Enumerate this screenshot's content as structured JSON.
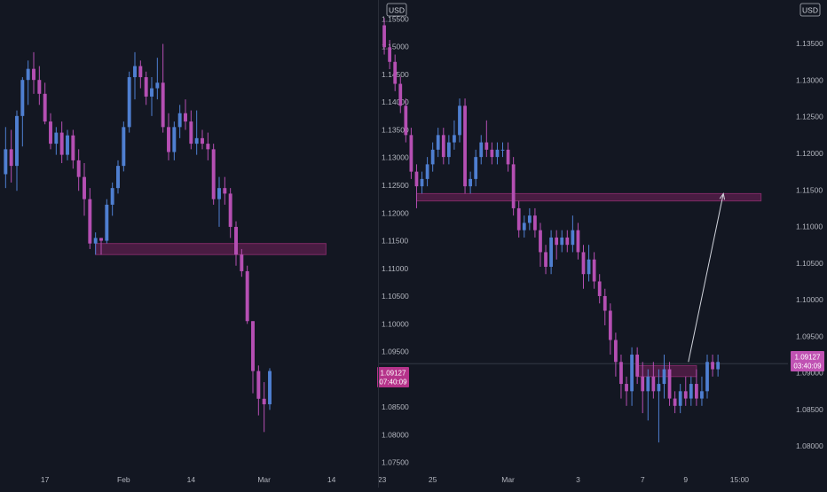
{
  "colors": {
    "background": "#131722",
    "text": "#b2b5be",
    "divider": "#2a2e39",
    "bull": "#4f7fd1",
    "bear": "#b54fb3",
    "zone_fill": "#5c1f4d",
    "zone_stroke": "#7e2a66",
    "price_tag": "#b5338a",
    "price_tag_right": "#c052b3",
    "arrow": "#d1d4dc"
  },
  "chart_data": [
    {
      "type": "candlestick",
      "title": "",
      "currency_label": "USD",
      "current_price": "1.09127",
      "countdown": "07:40:09",
      "x_tick_labels": [
        "17",
        "Feb",
        "14",
        "Mar",
        "14",
        "23"
      ],
      "y_tick_labels": [
        "1.15500",
        "1.15000",
        "1.14500",
        "1.14000",
        "1.13500",
        "1.13000",
        "1.12500",
        "1.12000",
        "1.11500",
        "1.11000",
        "1.10500",
        "1.10000",
        "1.09500",
        "1.09000",
        "1.08500",
        "1.08000",
        "1.07500"
      ],
      "ylim": [
        1.074,
        1.1565
      ],
      "xlim": [
        0,
        66
      ],
      "y_axis_side": "right",
      "x_ticks": [
        8,
        22,
        34,
        47,
        59,
        68
      ],
      "zone": {
        "x0": 17,
        "x1": 58,
        "y_low": 1.1125,
        "y_high": 1.1145
      },
      "candles": [
        [
          1,
          1.127,
          1.1355,
          1.1245,
          1.1315
        ],
        [
          2,
          1.1315,
          1.135,
          1.1255,
          1.1285
        ],
        [
          3,
          1.1285,
          1.1385,
          1.124,
          1.1375
        ],
        [
          4,
          1.1375,
          1.1445,
          1.132,
          1.144
        ],
        [
          5,
          1.144,
          1.1475,
          1.1395,
          1.146
        ],
        [
          6,
          1.146,
          1.149,
          1.1415,
          1.144
        ],
        [
          7,
          1.144,
          1.1465,
          1.1395,
          1.1415
        ],
        [
          8,
          1.1415,
          1.1435,
          1.136,
          1.1365
        ],
        [
          9,
          1.1365,
          1.138,
          1.1315,
          1.1325
        ],
        [
          10,
          1.1325,
          1.1355,
          1.1305,
          1.1345
        ],
        [
          11,
          1.1345,
          1.1365,
          1.129,
          1.1305
        ],
        [
          12,
          1.1305,
          1.135,
          1.1295,
          1.134
        ],
        [
          13,
          1.134,
          1.135,
          1.128,
          1.1295
        ],
        [
          14,
          1.1295,
          1.1315,
          1.124,
          1.1265
        ],
        [
          15,
          1.1265,
          1.129,
          1.1195,
          1.1225
        ],
        [
          16,
          1.1225,
          1.1245,
          1.1135,
          1.1145
        ],
        [
          17,
          1.1145,
          1.1165,
          1.1125,
          1.1155
        ],
        [
          18,
          1.1155,
          1.1155,
          1.1125,
          1.115
        ],
        [
          19,
          1.115,
          1.1225,
          1.1145,
          1.1215
        ],
        [
          20,
          1.1215,
          1.1255,
          1.1195,
          1.1245
        ],
        [
          21,
          1.1245,
          1.1295,
          1.1235,
          1.1285
        ],
        [
          22,
          1.1285,
          1.1365,
          1.1275,
          1.1355
        ],
        [
          23,
          1.1355,
          1.1455,
          1.1345,
          1.1445
        ],
        [
          24,
          1.1445,
          1.149,
          1.1405,
          1.1465
        ],
        [
          25,
          1.1465,
          1.1475,
          1.1425,
          1.1445
        ],
        [
          26,
          1.1445,
          1.1455,
          1.1395,
          1.141
        ],
        [
          27,
          1.141,
          1.1445,
          1.1375,
          1.1425
        ],
        [
          28,
          1.1425,
          1.148,
          1.1405,
          1.1435
        ],
        [
          29,
          1.1435,
          1.1505,
          1.1345,
          1.1355
        ],
        [
          30,
          1.1355,
          1.138,
          1.1295,
          1.131
        ],
        [
          31,
          1.131,
          1.1365,
          1.1295,
          1.1355
        ],
        [
          32,
          1.1355,
          1.1395,
          1.1335,
          1.138
        ],
        [
          33,
          1.138,
          1.1405,
          1.135,
          1.1365
        ],
        [
          34,
          1.1365,
          1.1385,
          1.1315,
          1.1325
        ],
        [
          35,
          1.1325,
          1.1385,
          1.1305,
          1.1335
        ],
        [
          36,
          1.1335,
          1.135,
          1.1315,
          1.1325
        ],
        [
          37,
          1.1325,
          1.1345,
          1.1295,
          1.1315
        ],
        [
          38,
          1.1315,
          1.1325,
          1.1215,
          1.1225
        ],
        [
          39,
          1.1225,
          1.1265,
          1.1175,
          1.1245
        ],
        [
          40,
          1.1245,
          1.1265,
          1.1215,
          1.1235
        ],
        [
          41,
          1.1235,
          1.1245,
          1.1155,
          1.1175
        ],
        [
          42,
          1.1175,
          1.1185,
          1.1105,
          1.1125
        ],
        [
          43,
          1.1125,
          1.1135,
          1.1085,
          1.1095
        ],
        [
          44,
          1.1095,
          1.1105,
          1.1,
          1.1005
        ],
        [
          45,
          1.1005,
          1.1005,
          1.0875,
          1.0915
        ],
        [
          46,
          1.0915,
          1.0925,
          1.0835,
          1.0865
        ],
        [
          47,
          1.0865,
          1.0895,
          1.0805,
          1.0855
        ],
        [
          48,
          1.0855,
          1.092,
          1.0845,
          1.0915
        ]
      ]
    },
    {
      "type": "candlestick",
      "title": "",
      "currency_label": "USD",
      "current_price": "1.09127",
      "countdown": "03:40:09",
      "x_tick_labels": [
        "25",
        "Mar",
        "3",
        "7",
        "9",
        "15:00"
      ],
      "y_tick_labels": [
        "1.13500",
        "1.13000",
        "1.12500",
        "1.12000",
        "1.11500",
        "1.11000",
        "1.10500",
        "1.10000",
        "1.09500",
        "1.09000",
        "1.08500",
        "1.08000"
      ],
      "ylim": [
        1.077,
        1.1395
      ],
      "xlim": [
        0,
        76
      ],
      "y_axis_side": "right",
      "x_ticks": [
        10,
        24,
        37,
        49,
        57,
        67
      ],
      "current_price_line": 1.09127,
      "zone": {
        "x0": 7,
        "x1": 71,
        "y_low": 1.1135,
        "y_high": 1.1145
      },
      "zone2": {
        "x0": 48,
        "x1": 59,
        "y_low": 1.0895,
        "y_high": 1.091
      },
      "arrow": {
        "from": [
          57.5,
          1.0915
        ],
        "to": [
          64,
          1.1145
        ]
      },
      "candles": [
        [
          1,
          1.1375,
          1.1385,
          1.1335,
          1.1345
        ],
        [
          2,
          1.1345,
          1.1355,
          1.1315,
          1.1325
        ],
        [
          3,
          1.1325,
          1.1335,
          1.1285,
          1.1295
        ],
        [
          4,
          1.1295,
          1.1305,
          1.1255,
          1.1265
        ],
        [
          5,
          1.1265,
          1.1275,
          1.1215,
          1.1225
        ],
        [
          6,
          1.1225,
          1.1235,
          1.1165,
          1.1175
        ],
        [
          7,
          1.1175,
          1.1185,
          1.1125,
          1.1155
        ],
        [
          8,
          1.1155,
          1.1175,
          1.1145,
          1.1165
        ],
        [
          9,
          1.1165,
          1.1195,
          1.1155,
          1.1185
        ],
        [
          10,
          1.1185,
          1.1215,
          1.1175,
          1.1205
        ],
        [
          11,
          1.1205,
          1.1235,
          1.1195,
          1.1225
        ],
        [
          12,
          1.1225,
          1.1235,
          1.1185,
          1.1195
        ],
        [
          13,
          1.1195,
          1.1225,
          1.1185,
          1.1215
        ],
        [
          14,
          1.1215,
          1.1245,
          1.1205,
          1.1225
        ],
        [
          15,
          1.1225,
          1.1275,
          1.1215,
          1.1265
        ],
        [
          16,
          1.1265,
          1.1275,
          1.1145,
          1.1155
        ],
        [
          17,
          1.1155,
          1.1175,
          1.1145,
          1.1165
        ],
        [
          18,
          1.1165,
          1.1205,
          1.1155,
          1.1195
        ],
        [
          19,
          1.1195,
          1.1225,
          1.1185,
          1.1215
        ],
        [
          20,
          1.1215,
          1.1245,
          1.1195,
          1.1205
        ],
        [
          21,
          1.1205,
          1.1215,
          1.1185,
          1.1195
        ],
        [
          22,
          1.1195,
          1.1215,
          1.1185,
          1.1205
        ],
        [
          23,
          1.1205,
          1.1215,
          1.1195,
          1.1205
        ],
        [
          24,
          1.1205,
          1.1215,
          1.1175,
          1.1185
        ],
        [
          25,
          1.1185,
          1.1195,
          1.1115,
          1.1125
        ],
        [
          26,
          1.1125,
          1.1135,
          1.1085,
          1.1095
        ],
        [
          27,
          1.1095,
          1.1115,
          1.1085,
          1.1105
        ],
        [
          28,
          1.1105,
          1.1125,
          1.1095,
          1.1115
        ],
        [
          29,
          1.1115,
          1.1125,
          1.1085,
          1.1095
        ],
        [
          30,
          1.1095,
          1.1105,
          1.1045,
          1.1065
        ],
        [
          31,
          1.1065,
          1.1075,
          1.1035,
          1.1045
        ],
        [
          32,
          1.1045,
          1.1095,
          1.1035,
          1.1085
        ],
        [
          33,
          1.1085,
          1.1095,
          1.1055,
          1.1075
        ],
        [
          34,
          1.1075,
          1.1095,
          1.1065,
          1.1085
        ],
        [
          35,
          1.1085,
          1.1095,
          1.1065,
          1.1075
        ],
        [
          36,
          1.1075,
          1.1115,
          1.1065,
          1.1095
        ],
        [
          37,
          1.1095,
          1.1105,
          1.1055,
          1.1065
        ],
        [
          38,
          1.1065,
          1.1075,
          1.1015,
          1.1035
        ],
        [
          39,
          1.1035,
          1.1075,
          1.1025,
          1.1055
        ],
        [
          40,
          1.1055,
          1.1065,
          1.1015,
          1.1025
        ],
        [
          41,
          1.1025,
          1.1035,
          1.0995,
          1.1005
        ],
        [
          42,
          1.1005,
          1.1015,
          1.0965,
          1.0985
        ],
        [
          43,
          1.0985,
          1.0995,
          1.0925,
          1.0945
        ],
        [
          44,
          1.0945,
          1.0955,
          1.0895,
          1.0915
        ],
        [
          45,
          1.0915,
          1.0925,
          1.0865,
          1.0885
        ],
        [
          46,
          1.0885,
          1.0895,
          1.0855,
          1.0875
        ],
        [
          47,
          1.0875,
          1.0935,
          1.0855,
          1.0925
        ],
        [
          48,
          1.0925,
          1.0935,
          1.0885,
          1.0895
        ],
        [
          49,
          1.0895,
          1.0915,
          1.0845,
          1.0875
        ],
        [
          50,
          1.0875,
          1.0905,
          1.0835,
          1.0895
        ],
        [
          51,
          1.0895,
          1.0915,
          1.0865,
          1.0875
        ],
        [
          52,
          1.0875,
          1.0905,
          1.0805,
          1.0885
        ],
        [
          53,
          1.0885,
          1.0925,
          1.0865,
          1.0905
        ],
        [
          54,
          1.0905,
          1.0915,
          1.0855,
          1.0865
        ],
        [
          55,
          1.0865,
          1.0875,
          1.0845,
          1.0855
        ],
        [
          56,
          1.0855,
          1.0885,
          1.0845,
          1.0875
        ],
        [
          57,
          1.0875,
          1.0895,
          1.0855,
          1.0865
        ],
        [
          58,
          1.0865,
          1.0895,
          1.0855,
          1.0885
        ],
        [
          59,
          1.0885,
          1.0905,
          1.0855,
          1.0865
        ],
        [
          60,
          1.0865,
          1.0895,
          1.0855,
          1.0875
        ],
        [
          61,
          1.0875,
          1.0925,
          1.0865,
          1.0915
        ],
        [
          62,
          1.0915,
          1.0925,
          1.0895,
          1.0905
        ],
        [
          63,
          1.0905,
          1.0925,
          1.0895,
          1.0915
        ]
      ]
    }
  ]
}
